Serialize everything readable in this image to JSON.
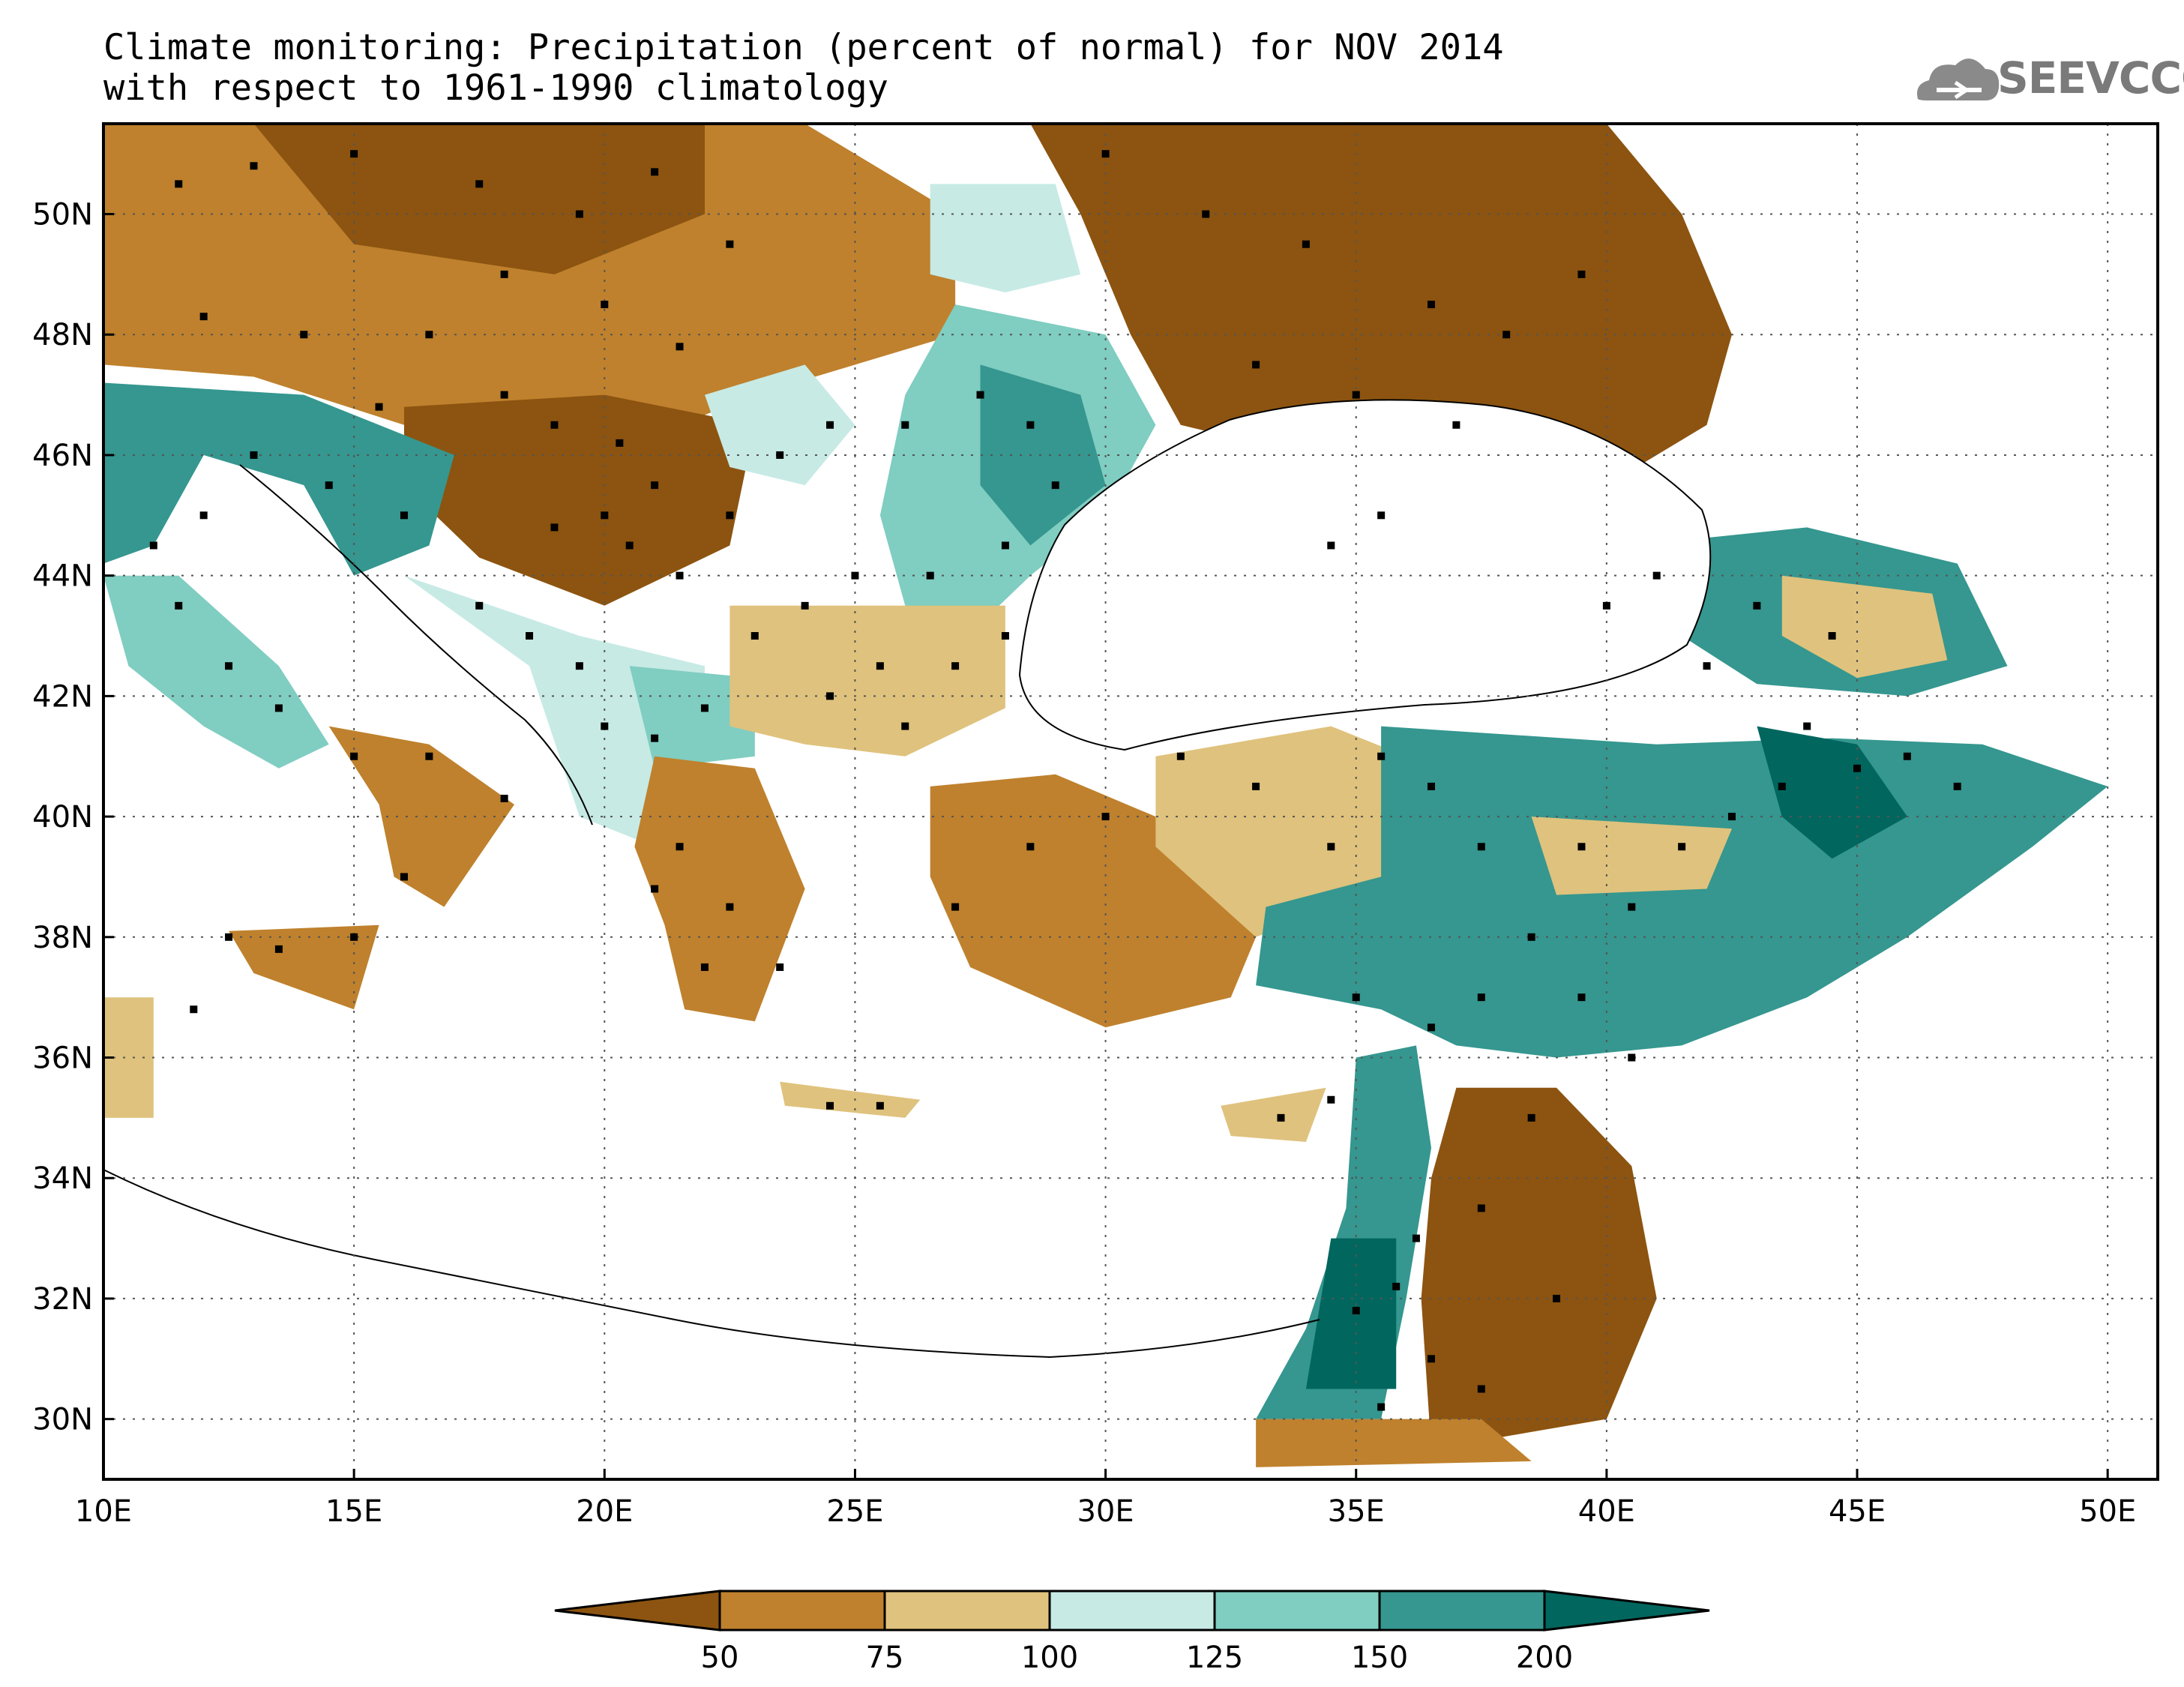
{
  "title": {
    "line1": "Climate monitoring: Precipitation (percent of normal) for NOV 2014",
    "line2": "with respect to 1961-1990 climatology"
  },
  "logo": {
    "text": "SEEVCCC",
    "icon": "cloud-icon"
  },
  "map": {
    "lon_range": [
      10,
      51
    ],
    "lat_range": [
      29,
      51.5
    ],
    "x_ticks": [
      {
        "value": 10,
        "label": "10E"
      },
      {
        "value": 15,
        "label": "15E"
      },
      {
        "value": 20,
        "label": "20E"
      },
      {
        "value": 25,
        "label": "25E"
      },
      {
        "value": 30,
        "label": "30E"
      },
      {
        "value": 35,
        "label": "35E"
      },
      {
        "value": 40,
        "label": "40E"
      },
      {
        "value": 45,
        "label": "45E"
      },
      {
        "value": 50,
        "label": "50E"
      }
    ],
    "y_ticks": [
      {
        "value": 30,
        "label": "30N"
      },
      {
        "value": 32,
        "label": "32N"
      },
      {
        "value": 34,
        "label": "34N"
      },
      {
        "value": 36,
        "label": "36N"
      },
      {
        "value": 38,
        "label": "38N"
      },
      {
        "value": 40,
        "label": "40N"
      },
      {
        "value": 42,
        "label": "42N"
      },
      {
        "value": 44,
        "label": "44N"
      },
      {
        "value": 46,
        "label": "46N"
      },
      {
        "value": 48,
        "label": "48N"
      },
      {
        "value": 50,
        "label": "50N"
      }
    ],
    "grid": "dotted"
  },
  "colorbar": {
    "classes": [
      {
        "range": "< 50",
        "color": "#8c5410"
      },
      {
        "range": "50-75",
        "color": "#bf812d"
      },
      {
        "range": "75-100",
        "color": "#dfc27d"
      },
      {
        "range": "100-125",
        "color": "#c7eae5"
      },
      {
        "range": "125-150",
        "color": "#80cdc1"
      },
      {
        "range": "150-200",
        "color": "#35978f"
      },
      {
        "range": "> 200",
        "color": "#01665e"
      }
    ],
    "labels": [
      "50",
      "75",
      "100",
      "125",
      "150",
      "200"
    ]
  },
  "regions": [
    {
      "name": "central-europe",
      "cls": 1,
      "pts": [
        [
          10,
          51.5
        ],
        [
          24,
          51.5
        ],
        [
          27,
          50
        ],
        [
          27,
          48
        ],
        [
          23,
          47
        ],
        [
          20,
          46
        ],
        [
          16,
          46.5
        ],
        [
          13,
          47.3
        ],
        [
          10,
          47.5
        ]
      ]
    },
    {
      "name": "hungary-serbia-core",
      "cls": 0,
      "pts": [
        [
          16,
          46.8
        ],
        [
          20,
          47
        ],
        [
          23,
          46.5
        ],
        [
          22.5,
          44.5
        ],
        [
          20,
          43.5
        ],
        [
          17.5,
          44.3
        ],
        [
          16,
          45.5
        ]
      ]
    },
    {
      "name": "poland-north",
      "cls": 0,
      "pts": [
        [
          13,
          51.5
        ],
        [
          22,
          51.5
        ],
        [
          22,
          50
        ],
        [
          19,
          49
        ],
        [
          15,
          49.5
        ]
      ]
    },
    {
      "name": "ukraine-russia-dry",
      "cls": 0,
      "pts": [
        [
          28.5,
          51.5
        ],
        [
          40,
          51.5
        ],
        [
          41.5,
          50
        ],
        [
          42.5,
          48
        ],
        [
          42,
          46.5
        ],
        [
          40,
          45.5
        ],
        [
          38,
          45
        ],
        [
          36.5,
          45.5
        ],
        [
          34,
          46
        ],
        [
          31.5,
          46.5
        ],
        [
          30.5,
          48
        ],
        [
          29.5,
          50
        ]
      ]
    },
    {
      "name": "moldova-wet",
      "cls": 4,
      "pts": [
        [
          27,
          48.5
        ],
        [
          30,
          48
        ],
        [
          31,
          46.5
        ],
        [
          30,
          45
        ],
        [
          28.5,
          44
        ],
        [
          27.5,
          43.2
        ],
        [
          26,
          43.5
        ],
        [
          25.5,
          45
        ],
        [
          26,
          47
        ]
      ]
    },
    {
      "name": "moldova-core",
      "cls": 5,
      "pts": [
        [
          27.5,
          47.5
        ],
        [
          29.5,
          47
        ],
        [
          30,
          45.5
        ],
        [
          28.5,
          44.5
        ],
        [
          27.5,
          45.5
        ]
      ]
    },
    {
      "name": "north-ukraine-wet",
      "cls": 3,
      "pts": [
        [
          26.5,
          50.5
        ],
        [
          29,
          50.5
        ],
        [
          29.5,
          49
        ],
        [
          28,
          48.7
        ],
        [
          26.5,
          49
        ]
      ]
    },
    {
      "name": "romania-west-wet",
      "cls": 3,
      "pts": [
        [
          22,
          47
        ],
        [
          24,
          47.5
        ],
        [
          25,
          46.5
        ],
        [
          24,
          45.5
        ],
        [
          22.5,
          45.8
        ]
      ]
    },
    {
      "name": "north-italy-wet",
      "cls": 5,
      "pts": [
        [
          10,
          47.2
        ],
        [
          14,
          47
        ],
        [
          17,
          46
        ],
        [
          16.5,
          44.5
        ],
        [
          15,
          44
        ],
        [
          14,
          45.5
        ],
        [
          12,
          46
        ],
        [
          11,
          44.5
        ],
        [
          10,
          44.2
        ]
      ]
    },
    {
      "name": "italy-west-wet",
      "cls": 4,
      "pts": [
        [
          10,
          44
        ],
        [
          11.5,
          44
        ],
        [
          13.5,
          42.5
        ],
        [
          14.5,
          41.2
        ],
        [
          13.5,
          40.8
        ],
        [
          12,
          41.5
        ],
        [
          10.5,
          42.5
        ]
      ]
    },
    {
      "name": "south-italy-dry",
      "cls": 1,
      "pts": [
        [
          14.5,
          41.5
        ],
        [
          16.5,
          41.2
        ],
        [
          18.2,
          40.2
        ],
        [
          16.8,
          38.5
        ],
        [
          15.8,
          39
        ],
        [
          15.5,
          40.2
        ]
      ]
    },
    {
      "name": "sicily-dry",
      "cls": 1,
      "pts": [
        [
          12.5,
          38.1
        ],
        [
          15.5,
          38.2
        ],
        [
          15,
          36.8
        ],
        [
          13,
          37.4
        ]
      ]
    },
    {
      "name": "balkans-coast-wet",
      "cls": 3,
      "pts": [
        [
          16,
          44
        ],
        [
          19.5,
          43
        ],
        [
          22,
          42.5
        ],
        [
          22,
          40.5
        ],
        [
          21,
          39.5
        ],
        [
          19.5,
          40
        ],
        [
          18.5,
          42.5
        ]
      ]
    },
    {
      "name": "north-macedonia-wet",
      "cls": 4,
      "pts": [
        [
          20.5,
          42.5
        ],
        [
          23,
          42.3
        ],
        [
          23,
          41
        ],
        [
          21,
          40.8
        ]
      ]
    },
    {
      "name": "bulgaria-dry",
      "cls": 2,
      "pts": [
        [
          22.5,
          43.5
        ],
        [
          28,
          43.5
        ],
        [
          28,
          41.8
        ],
        [
          26,
          41
        ],
        [
          24,
          41.2
        ],
        [
          22.5,
          41.5
        ]
      ]
    },
    {
      "name": "greece-dry",
      "cls": 1,
      "pts": [
        [
          21,
          41
        ],
        [
          23,
          40.8
        ],
        [
          24,
          38.8
        ],
        [
          23,
          36.6
        ],
        [
          21.6,
          36.8
        ],
        [
          21.2,
          38.2
        ],
        [
          20.6,
          39.5
        ]
      ]
    },
    {
      "name": "western-turkey-dry",
      "cls": 1,
      "pts": [
        [
          26.5,
          40.5
        ],
        [
          29,
          40.7
        ],
        [
          31,
          40
        ],
        [
          33,
          38
        ],
        [
          32.5,
          37
        ],
        [
          30,
          36.5
        ],
        [
          27.3,
          37.5
        ],
        [
          26.5,
          39
        ]
      ]
    },
    {
      "name": "central-turkey-tan",
      "cls": 2,
      "pts": [
        [
          31,
          41
        ],
        [
          34.5,
          41.5
        ],
        [
          36,
          41
        ],
        [
          36.5,
          40
        ],
        [
          35.5,
          38.8
        ],
        [
          33,
          38
        ],
        [
          31,
          39.5
        ]
      ]
    },
    {
      "name": "eastern-turkey-wet",
      "cls": 5,
      "pts": [
        [
          35.5,
          41.5
        ],
        [
          41,
          41.2
        ],
        [
          44.5,
          41.3
        ],
        [
          47.5,
          41.2
        ],
        [
          50,
          40.5
        ],
        [
          48.5,
          39.5
        ],
        [
          46,
          38
        ],
        [
          44,
          37
        ],
        [
          41.5,
          36.2
        ],
        [
          39,
          36
        ],
        [
          37,
          36.2
        ],
        [
          35.5,
          36.8
        ],
        [
          33,
          37.2
        ],
        [
          33.2,
          38.5
        ],
        [
          35.5,
          39
        ]
      ]
    },
    {
      "name": "eastern-turkey-core",
      "cls": 6,
      "pts": [
        [
          43,
          41.5
        ],
        [
          45,
          41.2
        ],
        [
          46,
          40
        ],
        [
          44.5,
          39.3
        ],
        [
          43.5,
          40
        ]
      ]
    },
    {
      "name": "turkey-tan-patch",
      "cls": 2,
      "pts": [
        [
          38.5,
          40
        ],
        [
          42.5,
          39.8
        ],
        [
          42,
          38.8
        ],
        [
          39,
          38.7
        ]
      ]
    },
    {
      "name": "caucasus-wet",
      "cls": 5,
      "pts": [
        [
          40.5,
          44.5
        ],
        [
          44,
          44.8
        ],
        [
          47,
          44.2
        ],
        [
          48,
          42.5
        ],
        [
          46,
          42
        ],
        [
          43,
          42.2
        ],
        [
          41.5,
          43
        ]
      ]
    },
    {
      "name": "caucasus-tan",
      "cls": 2,
      "pts": [
        [
          43.5,
          44
        ],
        [
          46.5,
          43.7
        ],
        [
          46.8,
          42.6
        ],
        [
          45,
          42.3
        ],
        [
          43.5,
          43
        ]
      ]
    },
    {
      "name": "levant-wet",
      "cls": 5,
      "pts": [
        [
          35,
          36
        ],
        [
          36.2,
          36.2
        ],
        [
          36.5,
          34.5
        ],
        [
          36,
          32
        ],
        [
          35.5,
          30
        ],
        [
          33,
          30
        ],
        [
          34,
          31.5
        ],
        [
          34.8,
          33.5
        ]
      ]
    },
    {
      "name": "levant-core",
      "cls": 6,
      "pts": [
        [
          34.5,
          33
        ],
        [
          35.8,
          33
        ],
        [
          35.8,
          30.5
        ],
        [
          34,
          30.5
        ]
      ]
    },
    {
      "name": "jordan-syria-dry",
      "cls": 0,
      "pts": [
        [
          37,
          35.5
        ],
        [
          39,
          35.5
        ],
        [
          40.5,
          34.2
        ],
        [
          41,
          32
        ],
        [
          40,
          30
        ],
        [
          36.5,
          29.5
        ],
        [
          36.3,
          32
        ],
        [
          36.5,
          34
        ]
      ]
    },
    {
      "name": "sinai-dry",
      "cls": 1,
      "pts": [
        [
          33,
          30
        ],
        [
          37.5,
          30
        ],
        [
          38.5,
          29.3
        ],
        [
          33,
          29.2
        ]
      ]
    },
    {
      "name": "cyprus-dry",
      "cls": 2,
      "pts": [
        [
          32.3,
          35.2
        ],
        [
          34.4,
          35.5
        ],
        [
          34,
          34.6
        ],
        [
          32.5,
          34.7
        ]
      ]
    },
    {
      "name": "crete-dry",
      "cls": 2,
      "pts": [
        [
          23.5,
          35.6
        ],
        [
          26.3,
          35.3
        ],
        [
          26,
          35
        ],
        [
          23.6,
          35.2
        ]
      ]
    },
    {
      "name": "tunisia-tan",
      "cls": 2,
      "pts": [
        [
          10,
          37
        ],
        [
          11,
          37
        ],
        [
          11,
          35
        ],
        [
          10,
          35
        ]
      ]
    }
  ],
  "stations": [
    [
      11.5,
      50.5
    ],
    [
      13,
      50.8
    ],
    [
      15,
      51
    ],
    [
      17.5,
      50.5
    ],
    [
      19.5,
      50
    ],
    [
      21,
      50.7
    ],
    [
      22.5,
      49.5
    ],
    [
      12,
      48.3
    ],
    [
      14,
      48
    ],
    [
      16.5,
      48
    ],
    [
      18,
      49
    ],
    [
      20,
      48.5
    ],
    [
      21.5,
      47.8
    ],
    [
      15.5,
      46.8
    ],
    [
      18,
      47
    ],
    [
      19,
      46.5
    ],
    [
      20.3,
      46.2
    ],
    [
      21,
      45.5
    ],
    [
      20,
      45
    ],
    [
      19,
      44.8
    ],
    [
      20.5,
      44.5
    ],
    [
      21.5,
      44
    ],
    [
      22.5,
      45
    ],
    [
      23.5,
      46
    ],
    [
      24.5,
      46.5
    ],
    [
      26,
      46.5
    ],
    [
      27.5,
      47
    ],
    [
      28.5,
      46.5
    ],
    [
      29,
      45.5
    ],
    [
      28,
      44.5
    ],
    [
      26.5,
      44
    ],
    [
      25,
      44
    ],
    [
      24,
      43.5
    ],
    [
      23,
      43
    ],
    [
      25.5,
      42.5
    ],
    [
      27,
      42.5
    ],
    [
      28,
      43
    ],
    [
      24.5,
      42
    ],
    [
      26,
      41.5
    ],
    [
      22,
      41.8
    ],
    [
      21,
      41.3
    ],
    [
      20,
      41.5
    ],
    [
      19.5,
      42.5
    ],
    [
      18.5,
      43
    ],
    [
      17.5,
      43.5
    ],
    [
      16,
      45
    ],
    [
      14.5,
      45.5
    ],
    [
      13,
      46
    ],
    [
      12,
      45
    ],
    [
      11,
      44.5
    ],
    [
      11.5,
      43.5
    ],
    [
      12.5,
      42.5
    ],
    [
      13.5,
      41.8
    ],
    [
      15,
      41
    ],
    [
      16.5,
      41
    ],
    [
      18,
      40.3
    ],
    [
      16,
      39
    ],
    [
      15,
      38
    ],
    [
      13.5,
      37.8
    ],
    [
      12.5,
      38
    ],
    [
      11.8,
      36.8
    ],
    [
      21.5,
      39.5
    ],
    [
      22.5,
      38.5
    ],
    [
      22,
      37.5
    ],
    [
      23.5,
      37.5
    ],
    [
      21,
      38.8
    ],
    [
      27,
      38.5
    ],
    [
      28.5,
      39.5
    ],
    [
      30,
      40
    ],
    [
      31.5,
      41
    ],
    [
      33,
      40.5
    ],
    [
      34.5,
      39.5
    ],
    [
      35.5,
      41
    ],
    [
      36.5,
      40.5
    ],
    [
      37.5,
      39.5
    ],
    [
      38.5,
      38
    ],
    [
      39.5,
      39.5
    ],
    [
      40.5,
      38.5
    ],
    [
      41.5,
      39.5
    ],
    [
      42.5,
      40
    ],
    [
      43.5,
      40.5
    ],
    [
      44,
      41.5
    ],
    [
      45,
      40.8
    ],
    [
      46,
      41
    ],
    [
      47,
      40.5
    ],
    [
      44.5,
      43
    ],
    [
      43,
      43.5
    ],
    [
      42,
      42.5
    ],
    [
      41,
      44
    ],
    [
      40,
      43.5
    ],
    [
      35,
      37
    ],
    [
      36.5,
      36.5
    ],
    [
      37.5,
      37
    ],
    [
      39.5,
      37
    ],
    [
      40.5,
      36
    ],
    [
      38.5,
      35
    ],
    [
      37.5,
      33.5
    ],
    [
      36.2,
      33
    ],
    [
      35.8,
      32.2
    ],
    [
      35,
      31.8
    ],
    [
      35.5,
      30.2
    ],
    [
      36.5,
      31
    ],
    [
      37.5,
      30.5
    ],
    [
      39,
      32
    ],
    [
      33.5,
      35
    ],
    [
      34.5,
      35.3
    ],
    [
      24.5,
      35.2
    ],
    [
      25.5,
      35.2
    ],
    [
      30,
      51
    ],
    [
      32,
      50
    ],
    [
      34,
      49.5
    ],
    [
      36.5,
      48.5
    ],
    [
      38,
      48
    ],
    [
      39.5,
      49
    ],
    [
      35,
      47
    ],
    [
      33,
      47.5
    ],
    [
      37,
      46.5
    ],
    [
      35.5,
      45
    ],
    [
      34.5,
      44.5
    ]
  ]
}
